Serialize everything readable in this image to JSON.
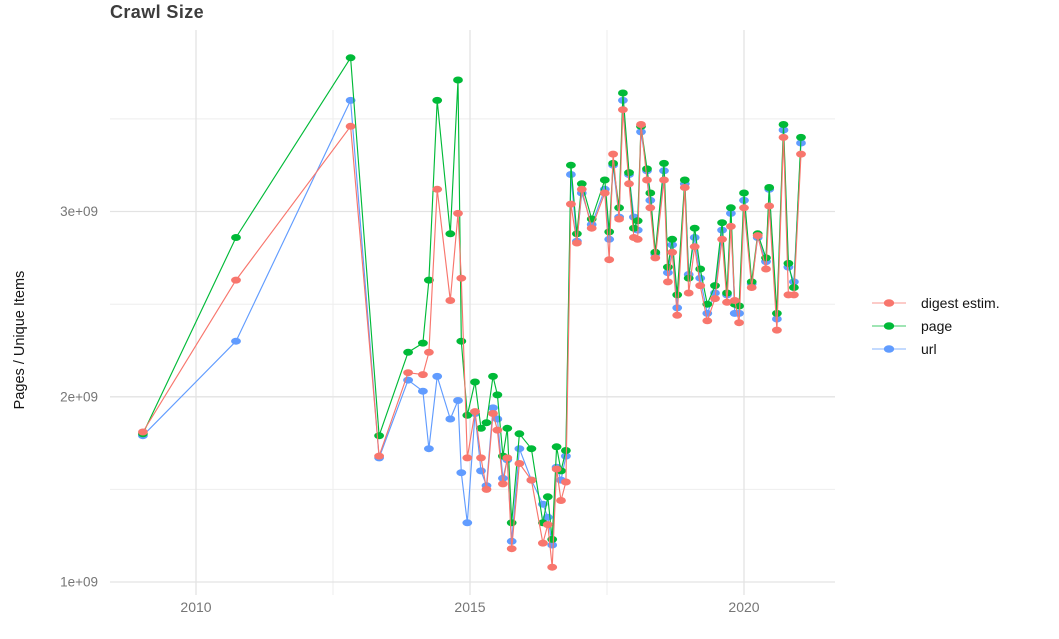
{
  "chart_data": {
    "type": "line",
    "title": "Crawl Size",
    "xlabel": "",
    "ylabel": "Pages / Unique Items",
    "units": "billions (1e+09)",
    "grid": "major and minor light-gray gridlines on white, no panel border, no axis ticks",
    "legend_position": "right",
    "x_domain": [
      2008.43,
      2021.66
    ],
    "y_domain": [
      0.93,
      3.98
    ],
    "x_ticks": [
      {
        "value": 2010,
        "label": "2010"
      },
      {
        "value": 2015,
        "label": "2015"
      },
      {
        "value": 2020,
        "label": "2020"
      }
    ],
    "x_minor_ticks": [
      2012.5,
      2017.5
    ],
    "y_ticks": [
      {
        "value": 1,
        "label": "1e+09"
      },
      {
        "value": 2,
        "label": "2e+09"
      },
      {
        "value": 3,
        "label": "3e+09"
      }
    ],
    "y_minor_ticks": [
      1.5,
      2.5,
      3.5
    ],
    "x": [
      2009.03,
      2010.73,
      2012.82,
      2013.34,
      2013.87,
      2014.14,
      2014.25,
      2014.4,
      2014.64,
      2014.78,
      2014.84,
      2014.95,
      2015.09,
      2015.2,
      2015.3,
      2015.42,
      2015.5,
      2015.6,
      2015.68,
      2015.76,
      2015.9,
      2016.12,
      2016.33,
      2016.42,
      2016.5,
      2016.58,
      2016.66,
      2016.75,
      2016.84,
      2016.95,
      2017.04,
      2017.22,
      2017.46,
      2017.54,
      2017.61,
      2017.72,
      2017.79,
      2017.9,
      2017.99,
      2018.06,
      2018.12,
      2018.23,
      2018.29,
      2018.38,
      2018.54,
      2018.61,
      2018.69,
      2018.78,
      2018.92,
      2018.99,
      2019.1,
      2019.2,
      2019.33,
      2019.47,
      2019.6,
      2019.69,
      2019.76,
      2019.83,
      2019.91,
      2020.0,
      2020.14,
      2020.25,
      2020.4,
      2020.46,
      2020.6,
      2020.72,
      2020.81,
      2020.91,
      2021.04
    ],
    "series": [
      {
        "name": "digest estim.",
        "color": "#F8766D",
        "values": [
          1.81,
          2.63,
          3.46,
          1.68,
          2.13,
          2.12,
          2.24,
          3.12,
          2.52,
          2.99,
          2.64,
          1.67,
          1.92,
          1.67,
          1.5,
          1.91,
          1.82,
          1.53,
          1.67,
          1.18,
          1.64,
          1.55,
          1.21,
          1.31,
          1.08,
          1.61,
          1.44,
          1.54,
          3.04,
          2.83,
          3.12,
          2.91,
          3.1,
          2.74,
          3.31,
          2.96,
          3.55,
          3.15,
          2.86,
          2.85,
          3.47,
          3.17,
          3.02,
          2.75,
          3.17,
          2.62,
          2.78,
          2.44,
          3.13,
          2.56,
          2.81,
          2.6,
          2.41,
          2.53,
          2.85,
          2.51,
          2.92,
          2.52,
          2.4,
          3.02,
          2.59,
          2.87,
          2.69,
          3.03,
          2.36,
          3.4,
          2.55,
          2.55,
          3.31
        ]
      },
      {
        "name": "page",
        "color": "#00BA38",
        "values": [
          1.8,
          2.86,
          3.83,
          1.79,
          2.24,
          2.29,
          2.63,
          3.6,
          2.88,
          3.71,
          2.3,
          1.9,
          2.08,
          1.83,
          1.86,
          2.11,
          2.01,
          1.68,
          1.83,
          1.32,
          1.8,
          1.72,
          1.32,
          1.46,
          1.23,
          1.73,
          1.6,
          1.71,
          3.25,
          2.88,
          3.15,
          2.96,
          3.17,
          2.89,
          3.26,
          3.02,
          3.64,
          3.21,
          2.91,
          2.95,
          3.46,
          3.23,
          3.1,
          2.78,
          3.26,
          2.7,
          2.85,
          2.55,
          3.17,
          2.64,
          2.91,
          2.69,
          2.5,
          2.6,
          2.94,
          2.56,
          3.02,
          2.5,
          2.49,
          3.1,
          2.62,
          2.88,
          2.75,
          3.13,
          2.45,
          3.47,
          2.72,
          2.59,
          3.4
        ]
      },
      {
        "name": "url",
        "color": "#619CFF",
        "values": [
          1.79,
          2.3,
          3.6,
          1.67,
          2.09,
          2.03,
          1.72,
          2.11,
          1.88,
          1.98,
          1.59,
          1.32,
          1.91,
          1.6,
          1.52,
          1.94,
          1.88,
          1.56,
          1.66,
          1.22,
          1.72,
          1.55,
          1.42,
          1.35,
          1.2,
          1.62,
          1.55,
          1.68,
          3.2,
          2.84,
          3.1,
          2.93,
          3.12,
          2.85,
          3.25,
          2.97,
          3.6,
          3.2,
          2.97,
          2.9,
          3.43,
          3.22,
          3.06,
          2.77,
          3.22,
          2.67,
          2.82,
          2.48,
          3.15,
          2.66,
          2.86,
          2.64,
          2.45,
          2.56,
          2.9,
          2.55,
          2.99,
          2.45,
          2.45,
          3.06,
          2.61,
          2.86,
          2.73,
          3.12,
          2.42,
          3.44,
          2.7,
          2.62,
          3.37
        ]
      }
    ]
  },
  "legend": {
    "entries": [
      {
        "label": "digest estim.",
        "color": "#F8766D"
      },
      {
        "label": "page",
        "color": "#00BA38"
      },
      {
        "label": "url",
        "color": "#619CFF"
      }
    ]
  },
  "style_colors": {
    "grid_major": "#e3e3e3",
    "grid_minor": "#eeeeee",
    "axis_text": "#767676",
    "title_text": "#3d3d3d",
    "background": "#ffffff"
  }
}
